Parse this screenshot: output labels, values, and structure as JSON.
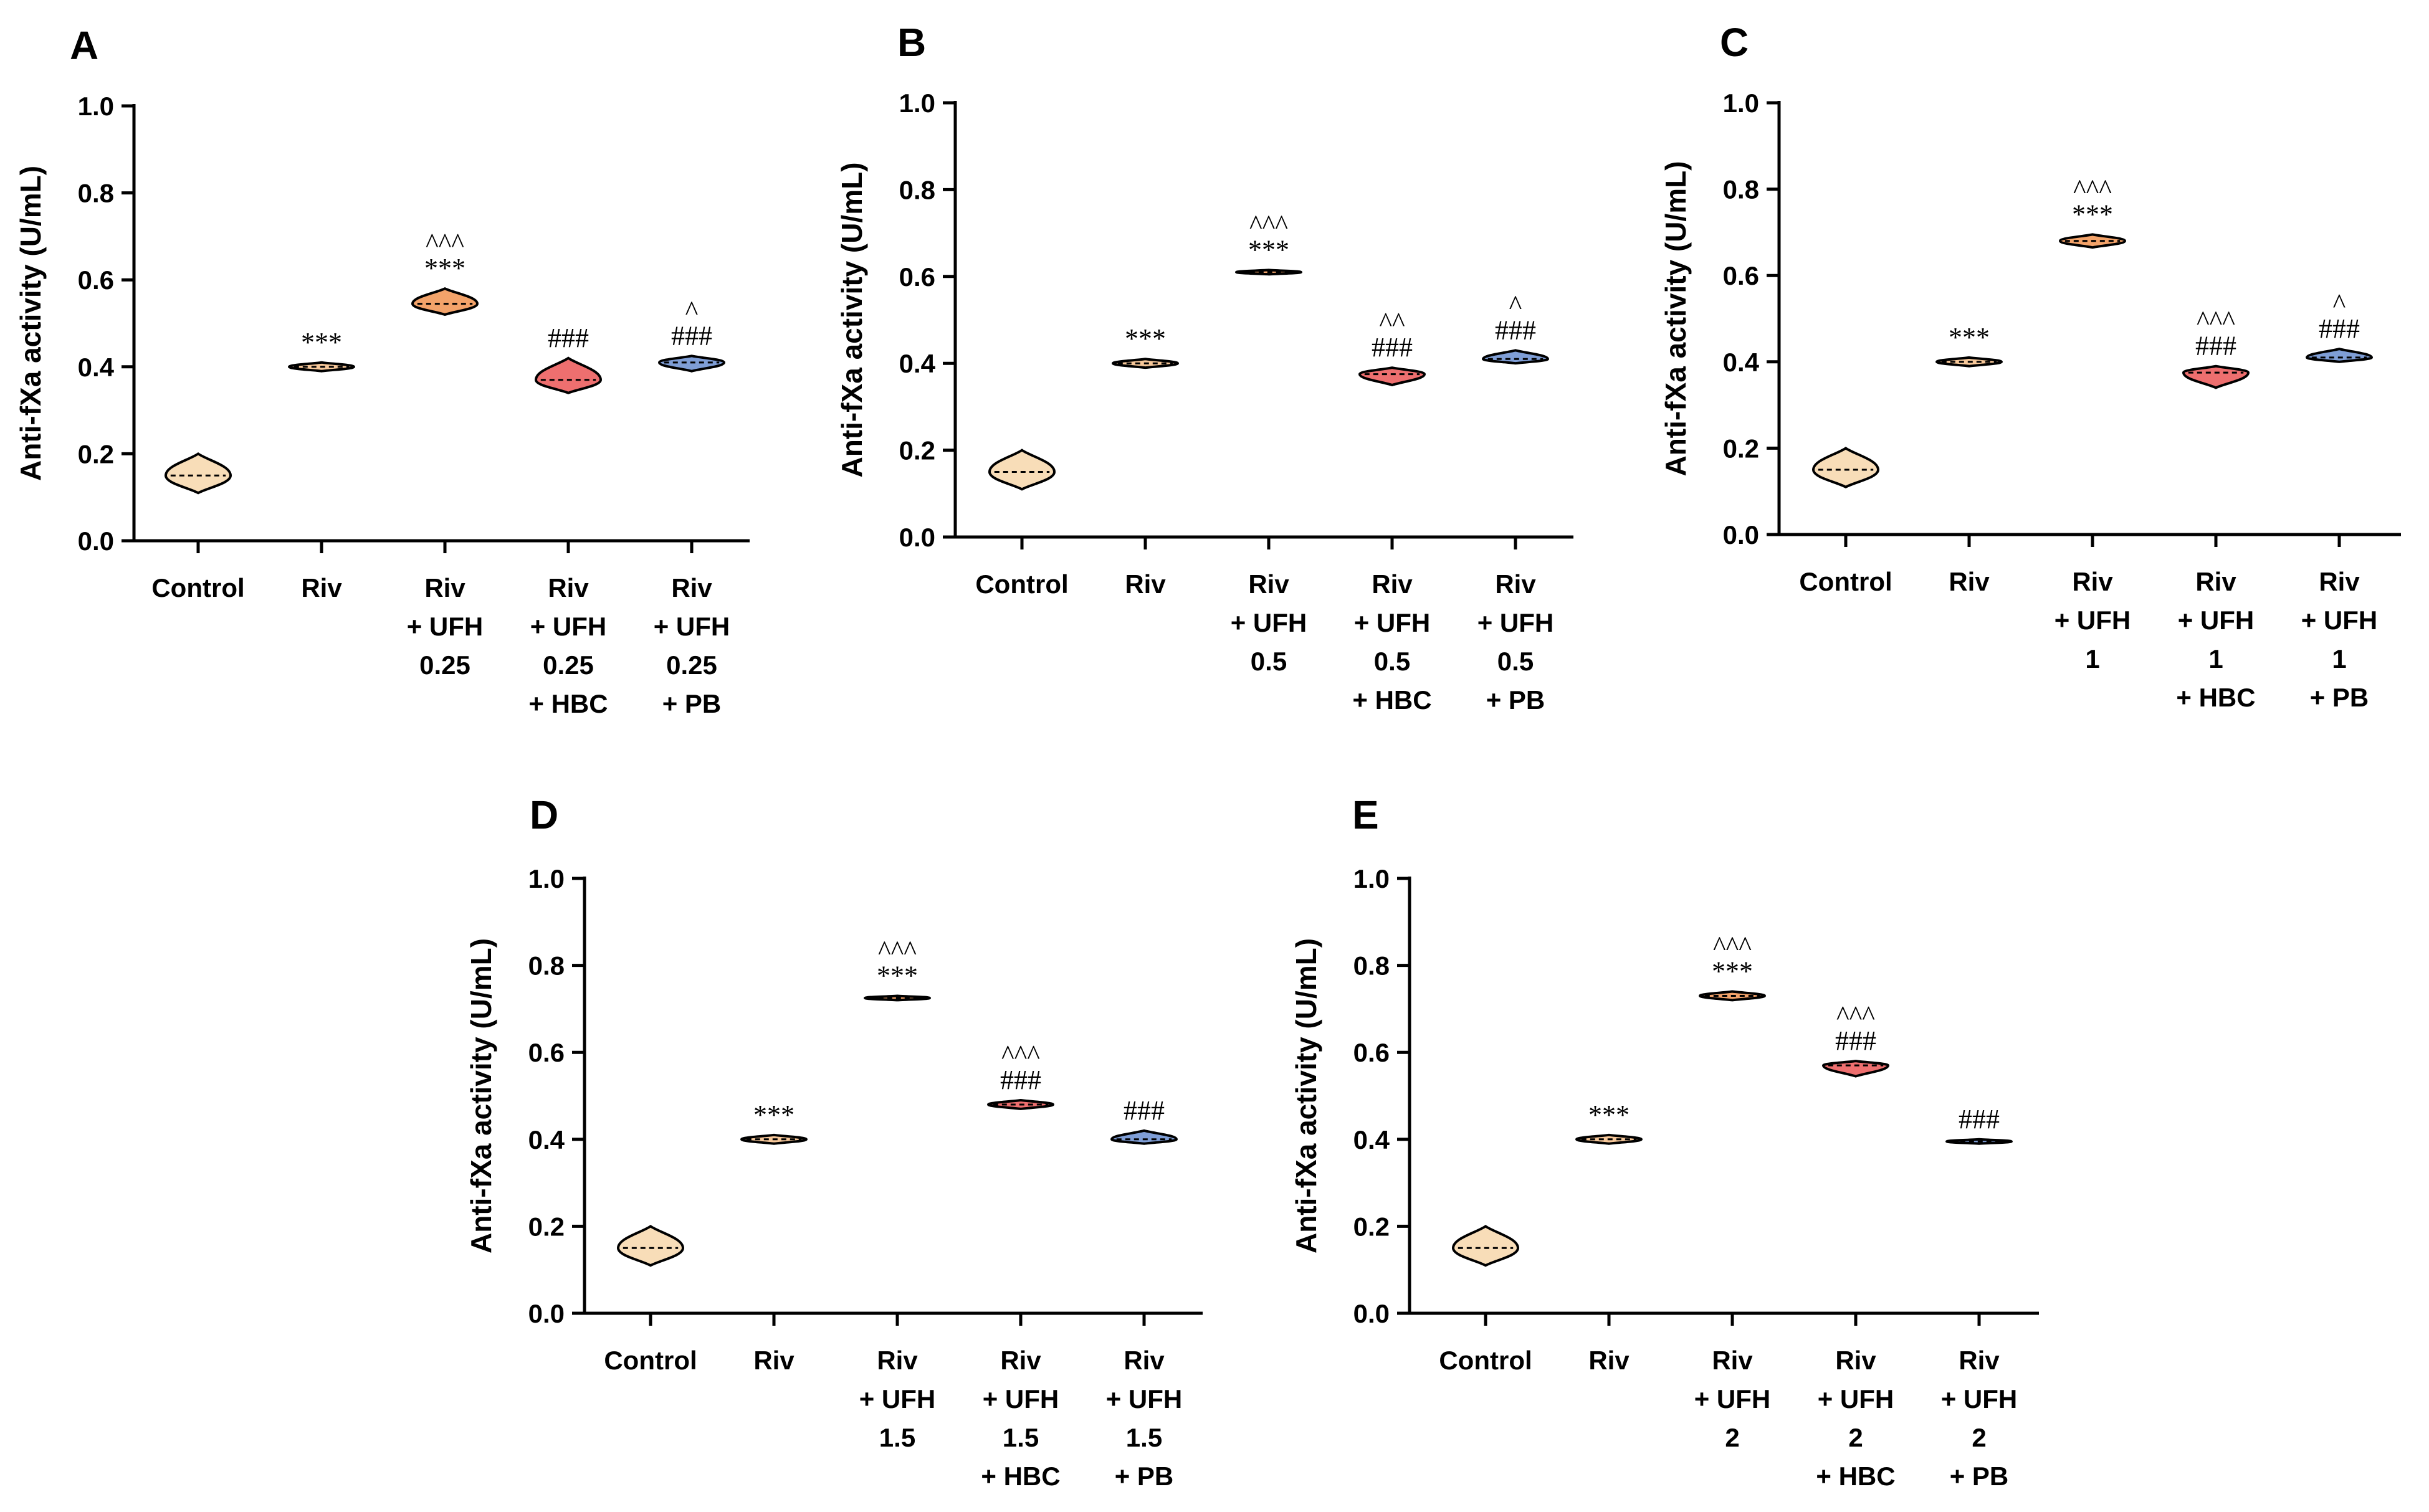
{
  "colors": {
    "control": "#f8ddb8",
    "riv": "#f7c89a",
    "ufh": "#f3a36a",
    "hbc": "#ee6f6f",
    "pb": "#7f9ed6"
  },
  "chart_data": [
    {
      "type": "violin",
      "panel": "A",
      "ylabel": "Anti-fXa activity (U/mL)",
      "ylim": [
        0,
        1.0
      ],
      "yticks": [
        "0.0",
        "0.2",
        "0.4",
        "0.6",
        "0.8",
        "1.0"
      ],
      "categories": [
        [
          "Control"
        ],
        [
          "Riv"
        ],
        [
          "Riv",
          "+ UFH",
          "0.25"
        ],
        [
          "Riv",
          "+ UFH",
          "0.25",
          "+ HBC"
        ],
        [
          "Riv",
          "+ UFH",
          "0.25",
          "+ PB"
        ]
      ],
      "groups": [
        {
          "median": 0.15,
          "min": 0.11,
          "max": 0.2,
          "ann": []
        },
        {
          "median": 0.4,
          "min": 0.39,
          "max": 0.41,
          "ann": [
            "***"
          ]
        },
        {
          "median": 0.545,
          "min": 0.52,
          "max": 0.58,
          "ann": [
            "^^^",
            "***"
          ]
        },
        {
          "median": 0.37,
          "min": 0.34,
          "max": 0.42,
          "ann": [
            "###"
          ]
        },
        {
          "median": 0.41,
          "min": 0.39,
          "max": 0.425,
          "ann": [
            "^",
            "###"
          ]
        }
      ]
    },
    {
      "type": "violin",
      "panel": "B",
      "ylabel": "Anti-fXa activity (U/mL)",
      "ylim": [
        0,
        1.0
      ],
      "yticks": [
        "0.0",
        "0.2",
        "0.4",
        "0.6",
        "0.8",
        "1.0"
      ],
      "categories": [
        [
          "Control"
        ],
        [
          "Riv"
        ],
        [
          "Riv",
          "+ UFH",
          "0.5"
        ],
        [
          "Riv",
          "+ UFH",
          "0.5",
          "+ HBC"
        ],
        [
          "Riv",
          "+ UFH",
          "0.5",
          "+ PB"
        ]
      ],
      "groups": [
        {
          "median": 0.15,
          "min": 0.11,
          "max": 0.2,
          "ann": []
        },
        {
          "median": 0.4,
          "min": 0.39,
          "max": 0.41,
          "ann": [
            "***"
          ]
        },
        {
          "median": 0.61,
          "min": 0.605,
          "max": 0.615,
          "ann": [
            "^^^",
            "***"
          ]
        },
        {
          "median": 0.375,
          "min": 0.35,
          "max": 0.39,
          "ann": [
            "^^",
            "###"
          ]
        },
        {
          "median": 0.41,
          "min": 0.4,
          "max": 0.43,
          "ann": [
            "^",
            "###"
          ]
        }
      ]
    },
    {
      "type": "violin",
      "panel": "C",
      "ylabel": "Anti-fXa activity (U/mL)",
      "ylim": [
        0,
        1.0
      ],
      "yticks": [
        "0.0",
        "0.2",
        "0.4",
        "0.6",
        "0.8",
        "1.0"
      ],
      "categories": [
        [
          "Control"
        ],
        [
          "Riv"
        ],
        [
          "Riv",
          "+ UFH",
          "1"
        ],
        [
          "Riv",
          "+ UFH",
          "1",
          "+ HBC"
        ],
        [
          "Riv",
          "+ UFH",
          "1",
          "+ PB"
        ]
      ],
      "groups": [
        {
          "median": 0.15,
          "min": 0.11,
          "max": 0.2,
          "ann": []
        },
        {
          "median": 0.4,
          "min": 0.39,
          "max": 0.41,
          "ann": [
            "***"
          ]
        },
        {
          "median": 0.68,
          "min": 0.665,
          "max": 0.695,
          "ann": [
            "^^^",
            "***"
          ]
        },
        {
          "median": 0.375,
          "min": 0.34,
          "max": 0.39,
          "ann": [
            "^^^",
            "###"
          ]
        },
        {
          "median": 0.41,
          "min": 0.4,
          "max": 0.43,
          "ann": [
            "^",
            "###"
          ]
        }
      ]
    },
    {
      "type": "violin",
      "panel": "D",
      "ylabel": "Anti-fXa activity (U/mL)",
      "ylim": [
        0,
        1.0
      ],
      "yticks": [
        "0.0",
        "0.2",
        "0.4",
        "0.6",
        "0.8",
        "1.0"
      ],
      "categories": [
        [
          "Control"
        ],
        [
          "Riv"
        ],
        [
          "Riv",
          "+ UFH",
          "1.5"
        ],
        [
          "Riv",
          "+ UFH",
          "1.5",
          "+ HBC"
        ],
        [
          "Riv",
          "+ UFH",
          "1.5",
          "+ PB"
        ]
      ],
      "groups": [
        {
          "median": 0.15,
          "min": 0.11,
          "max": 0.2,
          "ann": []
        },
        {
          "median": 0.4,
          "min": 0.39,
          "max": 0.41,
          "ann": [
            "***"
          ]
        },
        {
          "median": 0.725,
          "min": 0.72,
          "max": 0.73,
          "ann": [
            "^^^",
            "***"
          ]
        },
        {
          "median": 0.48,
          "min": 0.47,
          "max": 0.49,
          "ann": [
            "^^^",
            "###"
          ]
        },
        {
          "median": 0.4,
          "min": 0.39,
          "max": 0.42,
          "ann": [
            "###"
          ]
        }
      ]
    },
    {
      "type": "violin",
      "panel": "E",
      "ylabel": "Anti-fXa activity (U/mL)",
      "ylim": [
        0,
        1.0
      ],
      "yticks": [
        "0.0",
        "0.2",
        "0.4",
        "0.6",
        "0.8",
        "1.0"
      ],
      "categories": [
        [
          "Control"
        ],
        [
          "Riv"
        ],
        [
          "Riv",
          "+ UFH",
          "2"
        ],
        [
          "Riv",
          "+ UFH",
          "2",
          "+ HBC"
        ],
        [
          "Riv",
          "+ UFH",
          "2",
          "+ PB"
        ]
      ],
      "groups": [
        {
          "median": 0.15,
          "min": 0.11,
          "max": 0.2,
          "ann": []
        },
        {
          "median": 0.4,
          "min": 0.39,
          "max": 0.41,
          "ann": [
            "***"
          ]
        },
        {
          "median": 0.73,
          "min": 0.72,
          "max": 0.74,
          "ann": [
            "^^^",
            "***"
          ]
        },
        {
          "median": 0.57,
          "min": 0.545,
          "max": 0.58,
          "ann": [
            "^^^",
            "###"
          ]
        },
        {
          "median": 0.395,
          "min": 0.39,
          "max": 0.4,
          "ann": [
            "###"
          ]
        }
      ]
    }
  ]
}
